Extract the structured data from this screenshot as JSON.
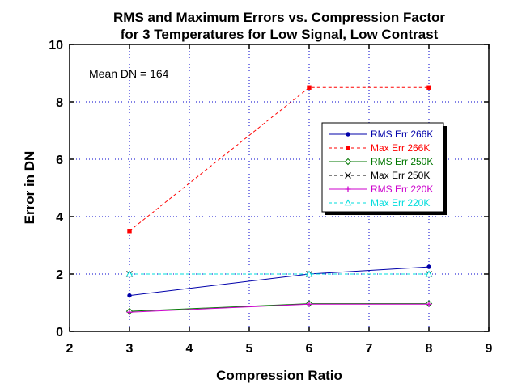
{
  "chart_data": {
    "type": "line",
    "title": "RMS and Maximum Errors vs. Compression Factor",
    "subtitle": "for 3 Temperatures for Low Signal, Low Contrast",
    "xlabel": "Compression Ratio",
    "ylabel": "Error in DN",
    "xlim": [
      2,
      9
    ],
    "ylim": [
      0,
      10
    ],
    "xticks": [
      2,
      3,
      4,
      5,
      6,
      7,
      8,
      9
    ],
    "yticks": [
      0,
      2,
      4,
      6,
      8,
      10
    ],
    "grid": true,
    "legend_placement": "right",
    "annotation": "Mean DN = 164",
    "x": [
      3,
      6,
      8
    ],
    "series": [
      {
        "name": "RMS Err 266K",
        "values": [
          1.25,
          2.0,
          2.25
        ],
        "color": "#0000aa",
        "dash": "solid",
        "marker": "dot"
      },
      {
        "name": "Max Err 266K",
        "values": [
          3.5,
          8.5,
          8.5
        ],
        "color": "#ff0000",
        "dash": "dashed",
        "marker": "square"
      },
      {
        "name": "RMS Err 250K",
        "values": [
          0.7,
          0.97,
          0.97
        ],
        "color": "#007700",
        "dash": "solid",
        "marker": "diamond"
      },
      {
        "name": "Max Err 250K",
        "values": [
          2.0,
          2.0,
          2.0
        ],
        "color": "#000000",
        "dash": "dashed",
        "marker": "x"
      },
      {
        "name": "RMS Err 220K",
        "values": [
          0.67,
          0.95,
          0.95
        ],
        "color": "#cc00cc",
        "dash": "solid",
        "marker": "plus"
      },
      {
        "name": "Max Err 220K",
        "values": [
          2.0,
          2.0,
          2.0
        ],
        "color": "#00dddd",
        "dash": "dashed",
        "marker": "triangle"
      }
    ]
  }
}
